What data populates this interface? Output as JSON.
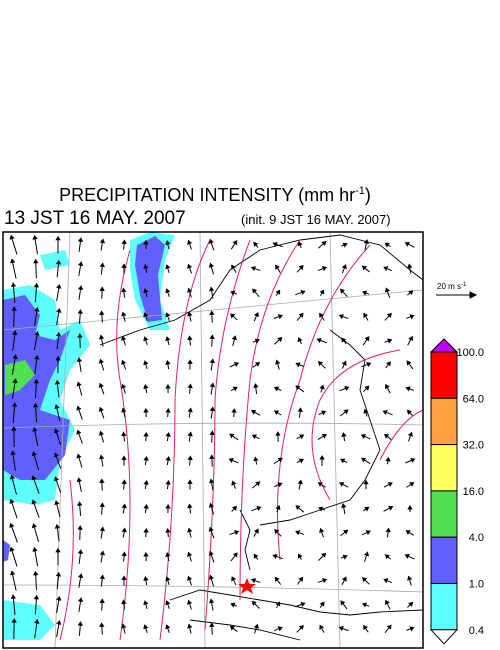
{
  "header": {
    "title": "PRECIPITATION INTENSITY (mm hr",
    "title_superscript": "-1",
    "title_suffix": ")",
    "valid_time": "13 JST 16 MAY. 2007",
    "init_time": "(init. 9 JST 16 MAY. 2007)"
  },
  "wind_scale": {
    "label": "20 m s",
    "superscript": "-1"
  },
  "colorbar": {
    "levels": [
      {
        "label": "100.0",
        "color": "#ff0000"
      },
      {
        "label": "64.0",
        "color": "#ffa040"
      },
      {
        "label": "32.0",
        "color": "#ffff60"
      },
      {
        "label": "16.0",
        "color": "#50e050"
      },
      {
        "label": "4.0",
        "color": "#6060ff"
      },
      {
        "label": "1.0",
        "color": "#60ffff"
      },
      {
        "label": "0.4",
        "color": "#ffffff"
      }
    ],
    "top_color": "#c000ff"
  }
}
